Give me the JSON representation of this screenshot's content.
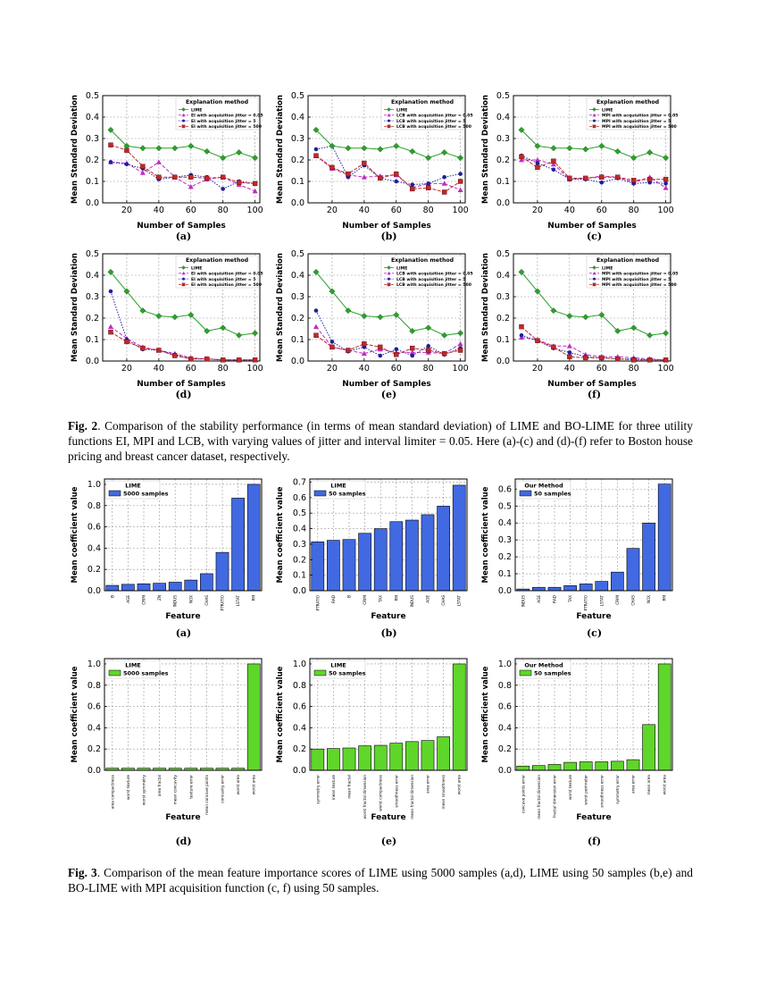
{
  "fig2": {
    "caption_label": "Fig. 2",
    "caption_text": ". Comparison of the stability performance (in terms of mean standard deviation) of LIME and BO-LIME for three utility functions EI, MPI and LCB, with varying values of jitter and interval limiter = 0.05.  Here (a)-(c) and (d)-(f) refer to Boston house pricing and breast cancer dataset, respectively.",
    "panels": [
      {
        "label": "(a)",
        "legend_title": "Explanation method",
        "series_names": [
          "LIME",
          "EI with acquisition jitter = 0.05",
          "EI with acquisition jitter = 5",
          "EI with acquisition jitter = 500"
        ],
        "lime": [
          0.34,
          0.265,
          0.255,
          0.255,
          0.255,
          0.265,
          0.24,
          0.21,
          0.235,
          0.21
        ],
        "s1": [
          0.19,
          0.185,
          0.14,
          0.19,
          0.12,
          0.075,
          0.11,
          0.12,
          0.085,
          0.055
        ],
        "s2": [
          0.19,
          0.18,
          0.16,
          0.11,
          0.12,
          0.13,
          0.12,
          0.065,
          0.1,
          0.09
        ],
        "s3": [
          0.27,
          0.245,
          0.17,
          0.12,
          0.12,
          0.12,
          0.115,
          0.12,
          0.095,
          0.09
        ]
      },
      {
        "label": "(b)",
        "legend_title": "Explanation method",
        "series_names": [
          "LIME",
          "LCB with acquisition jitter = 0.05",
          "LCB with acquisition jitter = 5",
          "LCB with acquisition jitter = 500"
        ],
        "lime": [
          0.34,
          0.265,
          0.255,
          0.255,
          0.25,
          0.265,
          0.24,
          0.21,
          0.235,
          0.21
        ],
        "s1": [
          0.22,
          0.16,
          0.13,
          0.12,
          0.125,
          0.13,
          0.07,
          0.09,
          0.09,
          0.06
        ],
        "s2": [
          0.25,
          0.265,
          0.12,
          0.175,
          0.115,
          0.1,
          0.085,
          0.09,
          0.12,
          0.135
        ],
        "s3": [
          0.22,
          0.165,
          0.135,
          0.185,
          0.115,
          0.135,
          0.065,
          0.07,
          0.05,
          0.1
        ]
      },
      {
        "label": "(c)",
        "legend_title": "Explanation method",
        "series_names": [
          "LIME",
          "MPI with acquisition jitter = 0.05",
          "MPI with acquisition jitter = 5",
          "MPI with acquisition jitter = 500"
        ],
        "lime": [
          0.34,
          0.265,
          0.255,
          0.255,
          0.25,
          0.265,
          0.24,
          0.21,
          0.235,
          0.21
        ],
        "s1": [
          0.2,
          0.2,
          0.18,
          0.11,
          0.115,
          0.125,
          0.12,
          0.095,
          0.12,
          0.07
        ],
        "s2": [
          0.22,
          0.185,
          0.155,
          0.11,
          0.11,
          0.095,
          0.115,
          0.09,
          0.095,
          0.09
        ],
        "s3": [
          0.215,
          0.165,
          0.195,
          0.115,
          0.115,
          0.12,
          0.12,
          0.105,
          0.11,
          0.11
        ]
      },
      {
        "label": "(d)",
        "legend_title": "Explanation method",
        "series_names": [
          "LIME",
          "EI with acquisition jitter = 0.05",
          "EI with acquisition jitter = 5",
          "EI with acquisition jitter = 500"
        ],
        "lime": [
          0.415,
          0.325,
          0.235,
          0.21,
          0.205,
          0.215,
          0.14,
          0.155,
          0.12,
          0.13
        ],
        "s1": [
          0.16,
          0.105,
          0.065,
          0.05,
          0.035,
          0.015,
          0.01,
          0.005,
          0.005,
          0.005
        ],
        "s2": [
          0.325,
          0.1,
          0.055,
          0.05,
          0.03,
          0.01,
          0.01,
          0.005,
          0.005,
          0.005
        ],
        "s3": [
          0.135,
          0.09,
          0.06,
          0.05,
          0.025,
          0.01,
          0.01,
          0.005,
          0.005,
          0.005
        ]
      },
      {
        "label": "(e)",
        "legend_title": "Explanation method",
        "series_names": [
          "LIME",
          "LCB with acquisition jitter = 0.05",
          "LCB with acquisition jitter = 5",
          "LCB with acquisition jitter = 500"
        ],
        "lime": [
          0.415,
          0.325,
          0.235,
          0.21,
          0.205,
          0.215,
          0.14,
          0.155,
          0.12,
          0.13
        ],
        "s1": [
          0.16,
          0.065,
          0.05,
          0.035,
          0.055,
          0.04,
          0.04,
          0.04,
          0.035,
          0.08
        ],
        "s2": [
          0.235,
          0.09,
          0.045,
          0.065,
          0.025,
          0.055,
          0.025,
          0.07,
          0.03,
          0.06
        ],
        "s3": [
          0.12,
          0.065,
          0.05,
          0.08,
          0.065,
          0.03,
          0.06,
          0.05,
          0.035,
          0.05
        ]
      },
      {
        "label": "(f)",
        "legend_title": "Explanation method",
        "series_names": [
          "LIME",
          "MPI with acquisition jitter = 0.05",
          "MPI with acquisition jitter = 5",
          "MPI with acquisition jitter = 500"
        ],
        "lime": [
          0.415,
          0.325,
          0.235,
          0.21,
          0.205,
          0.215,
          0.14,
          0.155,
          0.12,
          0.13
        ],
        "s1": [
          0.11,
          0.1,
          0.07,
          0.07,
          0.03,
          0.02,
          0.02,
          0.015,
          0.01,
          0.005
        ],
        "s2": [
          0.12,
          0.095,
          0.06,
          0.04,
          0.02,
          0.015,
          0.01,
          0.01,
          0.005,
          0.005
        ],
        "s3": [
          0.16,
          0.095,
          0.065,
          0.02,
          0.015,
          0.015,
          0.01,
          0.005,
          0.005,
          0.005
        ]
      }
    ]
  },
  "fig3": {
    "caption_label": "Fig. 3",
    "caption_text": ".  Comparison of the mean feature importance scores of LIME using 5000 samples (a,d), LIME using 50 samples (b,e) and BO-LIME with MPI acquisition function (c, f) using 50 samples.",
    "panels": [
      {
        "label": "(a)",
        "legend_title": "LIME",
        "legend_entry": "5000 samples",
        "features": [
          "B",
          "AGE",
          "CRIM",
          "ZN",
          "INDUS",
          "NOX",
          "CHAS",
          "PTRATIO",
          "LSTAT",
          "RM"
        ],
        "values": [
          0.05,
          0.06,
          0.065,
          0.07,
          0.08,
          0.1,
          0.16,
          0.36,
          0.87,
          1.0
        ]
      },
      {
        "label": "(b)",
        "legend_title": "LIME",
        "legend_entry": "50 samples",
        "features": [
          "PTRATIO",
          "RAD",
          "B",
          "CRIM",
          "TAX",
          "RM",
          "INDUS",
          "AGE",
          "CHAS",
          "LSTAT"
        ],
        "values": [
          0.315,
          0.325,
          0.33,
          0.37,
          0.4,
          0.445,
          0.455,
          0.49,
          0.545,
          0.68
        ]
      },
      {
        "label": "(c)",
        "legend_title": "Our Method",
        "legend_entry": "50 samples",
        "features": [
          "INDUS",
          "AGE",
          "RAD",
          "TAX",
          "PTRATIO",
          "LSTAT",
          "CRIM",
          "CHAS",
          "NOX",
          "RM"
        ],
        "values": [
          0.01,
          0.02,
          0.02,
          0.03,
          0.04,
          0.055,
          0.11,
          0.25,
          0.4,
          0.63
        ]
      },
      {
        "label": "(d)",
        "legend_title": "LIME",
        "legend_entry": "5000 samples",
        "features": [
          "area compactness",
          "worst texture",
          "worst symmetry",
          "area fractal",
          "mean concavity",
          "texture error",
          "mean concave points",
          "concavity error",
          "worst area",
          "worst area"
        ],
        "values": [
          0.02,
          0.02,
          0.02,
          0.02,
          0.02,
          0.02,
          0.02,
          0.02,
          0.02,
          1.0
        ]
      },
      {
        "label": "(e)",
        "legend_title": "LIME",
        "legend_entry": "50 samples",
        "features": [
          "symmetry error",
          "mean texture",
          "mean fractal",
          "worst fractal dimension",
          "worst compactness",
          "smoothness error",
          "mean fractal dimension",
          "area error",
          "mean smoothness",
          "worst area"
        ],
        "values": [
          0.2,
          0.205,
          0.21,
          0.23,
          0.235,
          0.255,
          0.27,
          0.28,
          0.315,
          1.0
        ]
      },
      {
        "label": "(f)",
        "legend_title": "Our Method",
        "legend_entry": "50 samples",
        "features": [
          "concave points error",
          "mean fractal dimension",
          "fractal dimension error",
          "worst texture",
          "worst perimeter",
          "smoothness error",
          "symmetry error",
          "area error",
          "mean area",
          "worst area"
        ],
        "values": [
          0.04,
          0.045,
          0.055,
          0.075,
          0.08,
          0.08,
          0.085,
          0.1,
          0.43,
          1.0
        ]
      }
    ]
  },
  "axes": {
    "fig2_xlabel": "Number of Samples",
    "fig2_ylabel": "Mean Standard Deviation",
    "fig2_x": [
      10,
      20,
      30,
      40,
      50,
      60,
      70,
      80,
      90,
      100
    ],
    "fig2_xticks": [
      20,
      40,
      60,
      80,
      100
    ],
    "fig2_yticks": [
      0.0,
      0.1,
      0.2,
      0.3,
      0.4,
      0.5
    ],
    "fig3_xlabel": "Feature",
    "fig3_ylabel": "Mean coefficient value"
  },
  "colors": {
    "lime": "#2ca02c",
    "s1": "#c02cc0",
    "s2": "#1f1f9f",
    "s3": "#c0282c",
    "bar_blue": "#4169e1",
    "bar_green": "#5fd62a"
  }
}
